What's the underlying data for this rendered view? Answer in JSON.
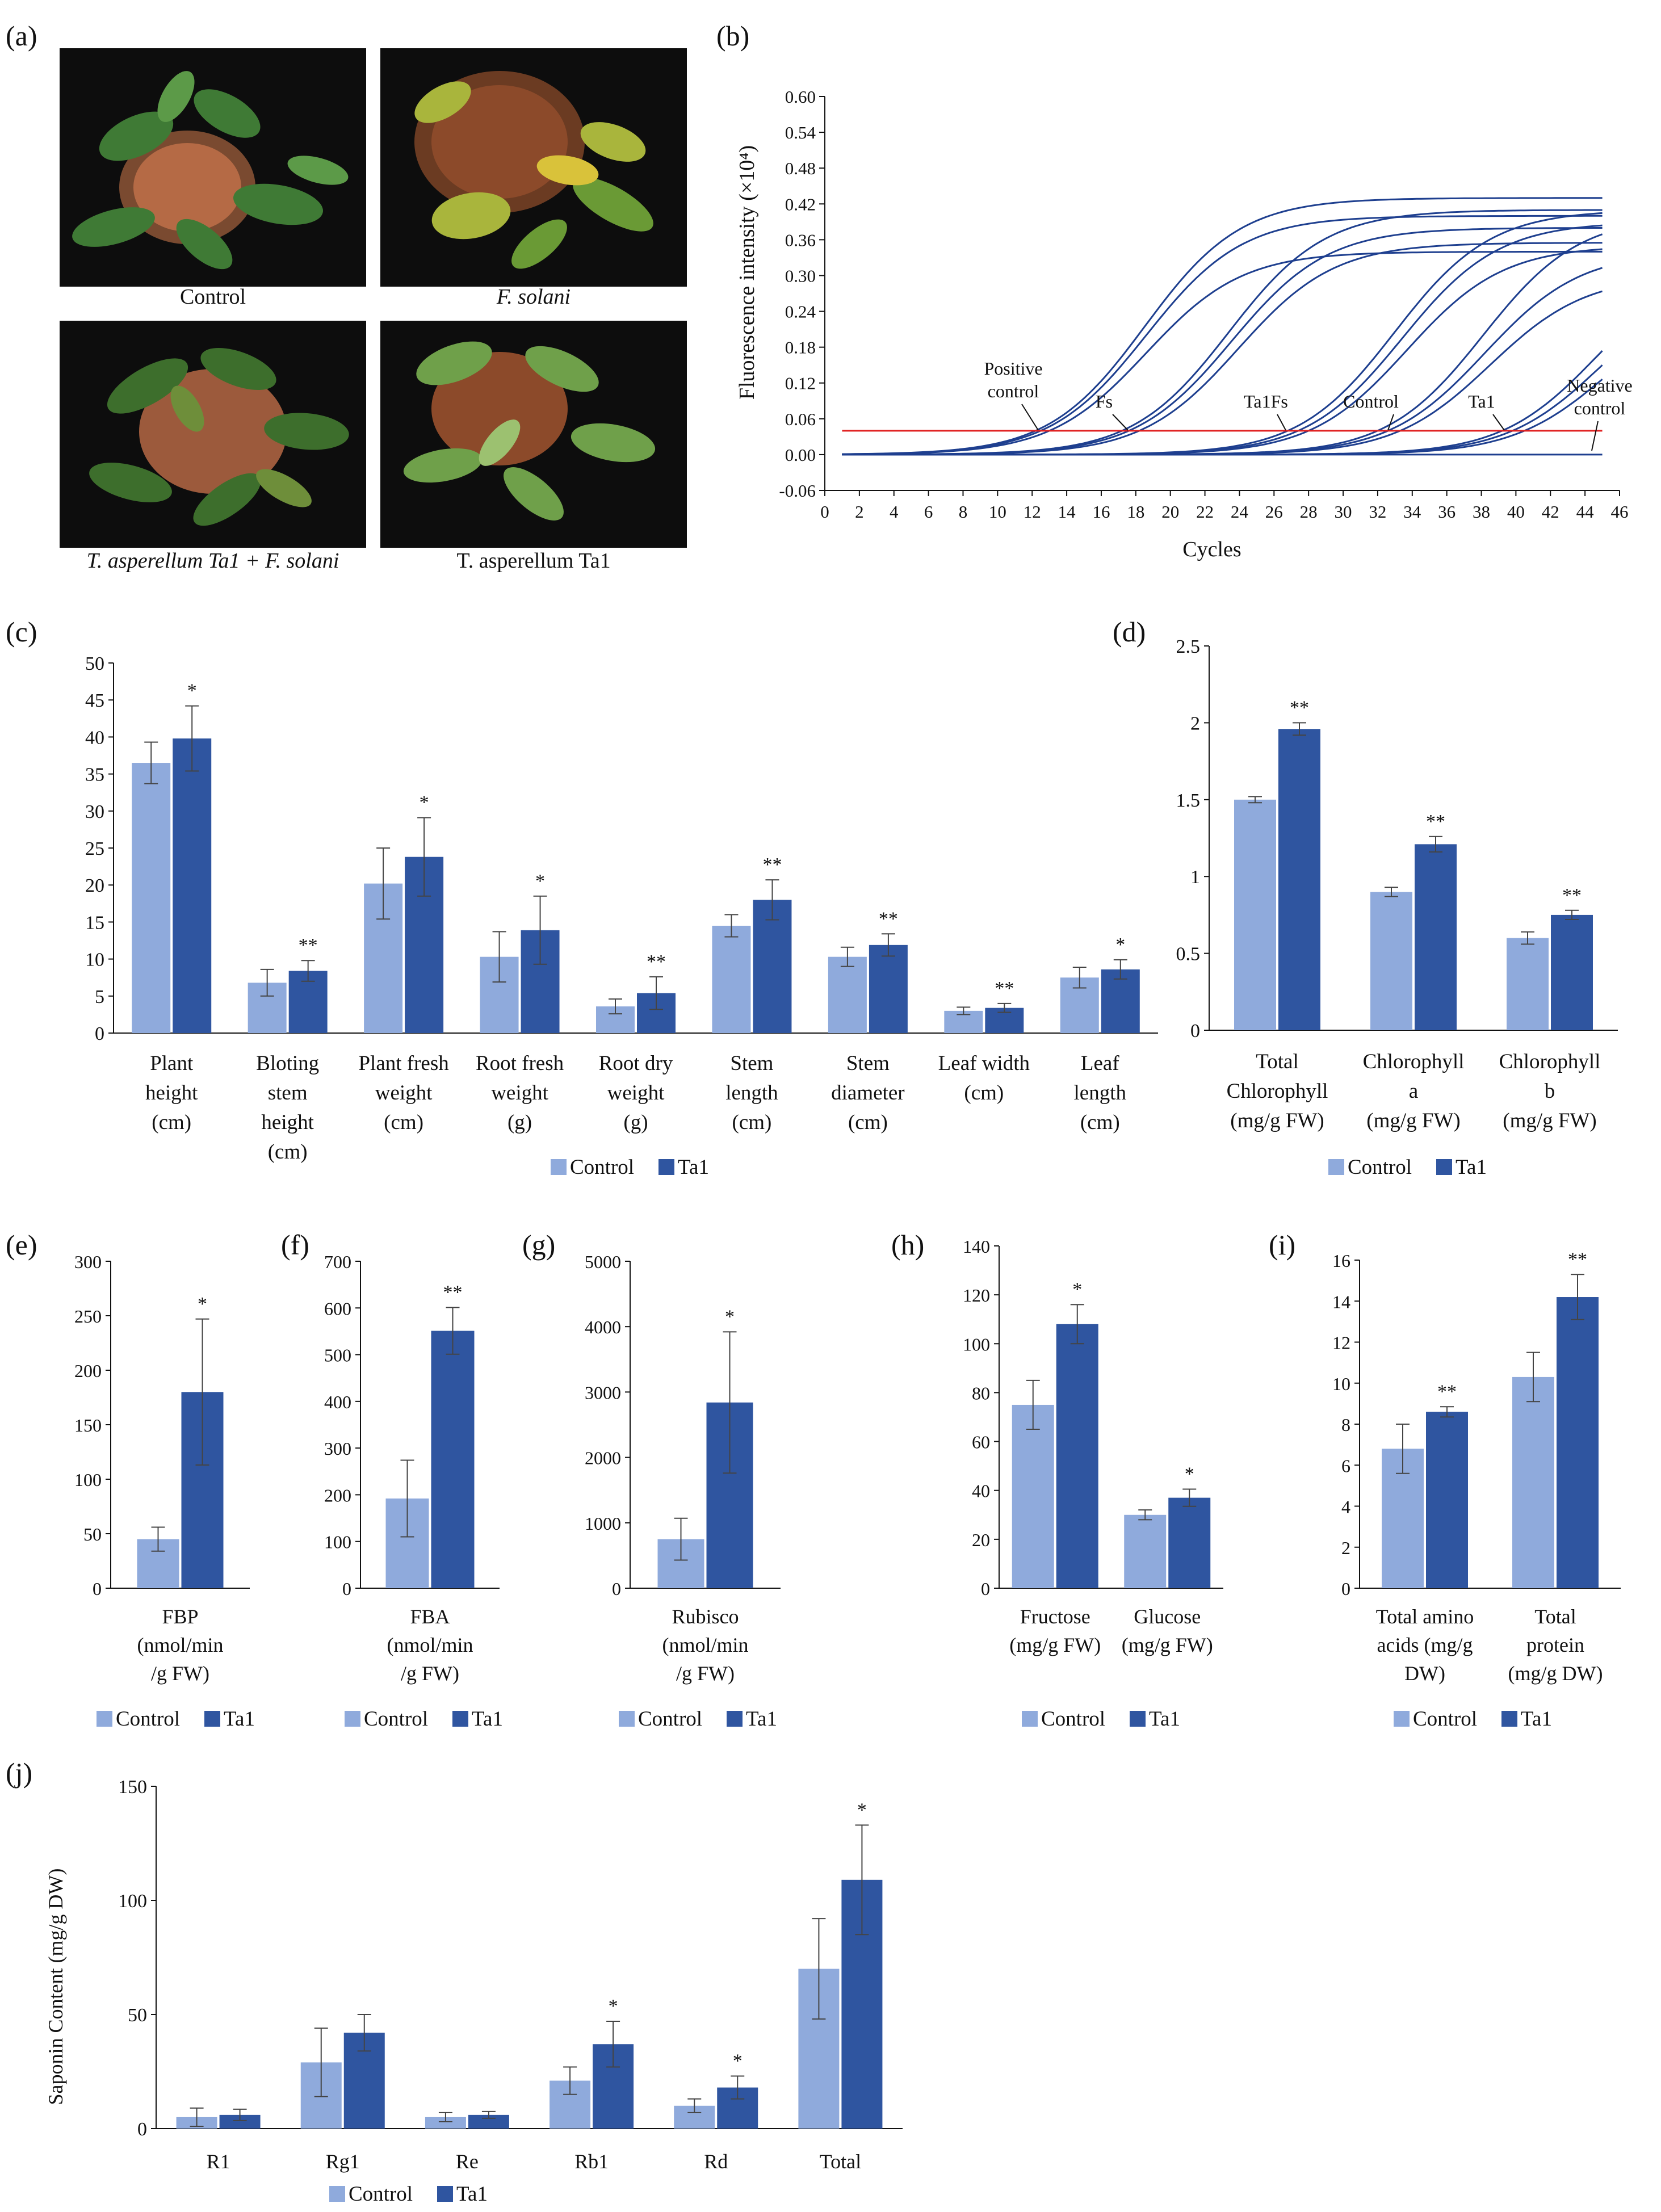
{
  "colors": {
    "control": "#8faadc",
    "ta1": "#2f55a0",
    "curve": "#1e3f8f",
    "threshold": "#e02020",
    "error": "#444444"
  },
  "panel_a": {
    "label": "(a)",
    "captions": [
      "Control",
      "F. solani",
      "T. asperellum Ta1 + F. solani",
      "T. asperellum Ta1"
    ]
  },
  "legend": {
    "control": "Control",
    "ta1": "Ta1"
  },
  "chart_data": [
    {
      "id": "b",
      "label": "(b)",
      "type": "line",
      "xlabel": "Cycles",
      "ylabel": "Fluorescence intensity (×10⁴)",
      "xlim": [
        0,
        46
      ],
      "xticks": [
        0,
        2,
        4,
        6,
        8,
        10,
        12,
        14,
        16,
        18,
        20,
        22,
        24,
        26,
        28,
        30,
        32,
        34,
        36,
        38,
        40,
        42,
        44,
        46
      ],
      "ylim": [
        -0.06,
        0.6
      ],
      "yticks": [
        "-0.06",
        "0.00",
        "0.06",
        "0.12",
        "0.18",
        "0.24",
        "0.30",
        "0.36",
        "0.42",
        "0.48",
        "0.54",
        "0.60"
      ],
      "threshold": 0.04,
      "annotations": [
        "Positive control",
        "Fs",
        "Ta1Fs",
        "Control",
        "Ta1",
        "Negative control"
      ],
      "series": [
        {
          "name": "Positive control 1",
          "ct": 12.2,
          "plateau": 0.43
        },
        {
          "name": "Positive control 2",
          "ct": 12.5,
          "plateau": 0.4
        },
        {
          "name": "Positive control 3",
          "ct": 13.0,
          "plateau": 0.34
        },
        {
          "name": "Fs 1",
          "ct": 17.2,
          "plateau": 0.41
        },
        {
          "name": "Fs 2",
          "ct": 17.6,
          "plateau": 0.38
        },
        {
          "name": "Fs 3",
          "ct": 18.2,
          "plateau": 0.355
        },
        {
          "name": "Ta1Fs 1",
          "ct": 26.8,
          "plateau": 0.41
        },
        {
          "name": "Ta1Fs 2",
          "ct": 27.4,
          "plateau": 0.39
        },
        {
          "name": "Ta1Fs 3",
          "ct": 28.0,
          "plateau": 0.35
        },
        {
          "name": "Control 1",
          "ct": 32.0,
          "plateau": 0.4
        },
        {
          "name": "Control 2",
          "ct": 32.6,
          "plateau": 0.34
        },
        {
          "name": "Control 3",
          "ct": 33.3,
          "plateau": 0.3
        },
        {
          "name": "Ta1 1",
          "ct": 39.2,
          "plateau": 0.33
        },
        {
          "name": "Ta1 2",
          "ct": 39.8,
          "plateau": 0.3
        },
        {
          "name": "Ta1 3",
          "ct": 40.5,
          "plateau": 0.27
        },
        {
          "name": "Negative control",
          "ct": null,
          "plateau": 0.0
        }
      ]
    },
    {
      "id": "c",
      "label": "(c)",
      "type": "bar",
      "categories": [
        "Plant\nheight\n(cm)",
        "Bloting\nstem\nheight\n(cm)",
        "Plant fresh\nweight\n(cm)",
        "Root fresh\nweight\n(g)",
        "Root dry\nweight\n(g)",
        "Stem\nlength\n(cm)",
        "Stem\ndiameter\n(cm)",
        "Leaf width\n(cm)",
        "Leaf\nlength\n(cm)"
      ],
      "ylim": [
        0,
        50
      ],
      "yticks": [
        0,
        5,
        10,
        15,
        20,
        25,
        30,
        35,
        40,
        45,
        50
      ],
      "series": [
        {
          "name": "Control",
          "values": [
            36.5,
            6.8,
            20.2,
            10.3,
            3.6,
            14.5,
            10.3,
            3.0,
            7.5
          ],
          "errors": [
            2.8,
            1.8,
            4.8,
            3.4,
            1.0,
            1.5,
            1.3,
            0.5,
            1.4
          ]
        },
        {
          "name": "Ta1",
          "values": [
            39.8,
            8.4,
            23.8,
            13.9,
            5.4,
            18.0,
            11.9,
            3.4,
            8.6
          ],
          "errors": [
            4.4,
            1.4,
            5.3,
            4.6,
            2.2,
            2.7,
            1.5,
            0.6,
            1.3
          ]
        }
      ],
      "significance": [
        "*",
        "**",
        "*",
        "*",
        "**",
        "**",
        "**",
        "**",
        "*"
      ]
    },
    {
      "id": "d",
      "label": "(d)",
      "type": "bar",
      "categories": [
        "Total\nChlorophyll\n(mg/g FW)",
        "Chlorophyll\na\n(mg/g FW)",
        "Chlorophyll\nb\n(mg/g FW)"
      ],
      "ylim": [
        0,
        2.5
      ],
      "yticks": [
        "0",
        "0.5",
        "1",
        "1.5",
        "2",
        "2.5"
      ],
      "series": [
        {
          "name": "Control",
          "values": [
            1.5,
            0.9,
            0.6
          ],
          "errors": [
            0.02,
            0.03,
            0.04
          ]
        },
        {
          "name": "Ta1",
          "values": [
            1.96,
            1.21,
            0.75
          ],
          "errors": [
            0.04,
            0.05,
            0.03
          ]
        }
      ],
      "significance": [
        "**",
        "**",
        "**"
      ]
    },
    {
      "id": "e",
      "label": "(e)",
      "type": "bar",
      "categories": [
        "FBP\n(nmol/min\n/g FW)"
      ],
      "ylim": [
        0,
        300
      ],
      "yticks": [
        0,
        50,
        100,
        150,
        200,
        250,
        300
      ],
      "series": [
        {
          "name": "Control",
          "values": [
            45
          ],
          "errors": [
            11
          ]
        },
        {
          "name": "Ta1",
          "values": [
            180
          ],
          "errors": [
            67
          ]
        }
      ],
      "significance": [
        "*"
      ]
    },
    {
      "id": "f",
      "label": "(f)",
      "type": "bar",
      "categories": [
        "FBA\n(nmol/min\n/g FW)"
      ],
      "ylim": [
        0,
        700
      ],
      "yticks": [
        0,
        100,
        200,
        300,
        400,
        500,
        600,
        700
      ],
      "series": [
        {
          "name": "Control",
          "values": [
            192
          ],
          "errors": [
            82
          ]
        },
        {
          "name": "Ta1",
          "values": [
            551
          ],
          "errors": [
            50
          ]
        }
      ],
      "significance": [
        "**"
      ]
    },
    {
      "id": "g",
      "label": "(g)",
      "type": "bar",
      "categories": [
        "Rubisco\n(nmol/min\n/g FW)"
      ],
      "ylim": [
        0,
        5000
      ],
      "yticks": [
        0,
        1000,
        2000,
        3000,
        4000,
        5000
      ],
      "series": [
        {
          "name": "Control",
          "values": [
            750
          ],
          "errors": [
            320
          ]
        },
        {
          "name": "Ta1",
          "values": [
            2840
          ],
          "errors": [
            1080
          ]
        }
      ],
      "significance": [
        "*"
      ]
    },
    {
      "id": "h",
      "label": "(h)",
      "type": "bar",
      "categories": [
        "Fructose\n(mg/g FW)",
        "Glucose\n(mg/g FW)"
      ],
      "ylim": [
        0,
        140
      ],
      "yticks": [
        0,
        20,
        40,
        60,
        80,
        100,
        120,
        140
      ],
      "series": [
        {
          "name": "Control",
          "values": [
            75,
            30
          ],
          "errors": [
            10,
            2
          ]
        },
        {
          "name": "Ta1",
          "values": [
            108,
            37
          ],
          "errors": [
            8,
            3.5
          ]
        }
      ],
      "significance": [
        "*",
        "*"
      ]
    },
    {
      "id": "i",
      "label": "(i)",
      "type": "bar",
      "categories": [
        "Total amino\nacids (mg/g\nDW)",
        "Total\nprotein\n(mg/g DW)"
      ],
      "ylim": [
        0,
        16
      ],
      "yticks": [
        0,
        2,
        4,
        6,
        8,
        10,
        12,
        14,
        16
      ],
      "series": [
        {
          "name": "Control",
          "values": [
            6.8,
            10.3
          ],
          "errors": [
            1.2,
            1.2
          ]
        },
        {
          "name": "Ta1",
          "values": [
            8.6,
            14.2
          ],
          "errors": [
            0.25,
            1.1
          ]
        }
      ],
      "significance": [
        "**",
        "**"
      ]
    },
    {
      "id": "j",
      "label": "(j)",
      "type": "bar",
      "categories": [
        "R1",
        "Rg1",
        "Re",
        "Rb1",
        "Rd",
        "Total"
      ],
      "ylabel": "Saponin Content (mg/g DW)",
      "ylim": [
        0,
        150
      ],
      "yticks": [
        0,
        50,
        100,
        150
      ],
      "series": [
        {
          "name": "Control",
          "values": [
            5,
            29,
            5,
            21,
            10,
            70
          ],
          "errors": [
            4,
            15,
            2,
            6,
            3,
            22
          ]
        },
        {
          "name": "Ta1",
          "values": [
            6,
            42,
            6,
            37,
            18,
            109
          ],
          "errors": [
            2.5,
            8,
            1.5,
            10,
            5,
            24
          ]
        }
      ],
      "significance": [
        "",
        "",
        "",
        "*",
        "*",
        "*"
      ]
    }
  ]
}
